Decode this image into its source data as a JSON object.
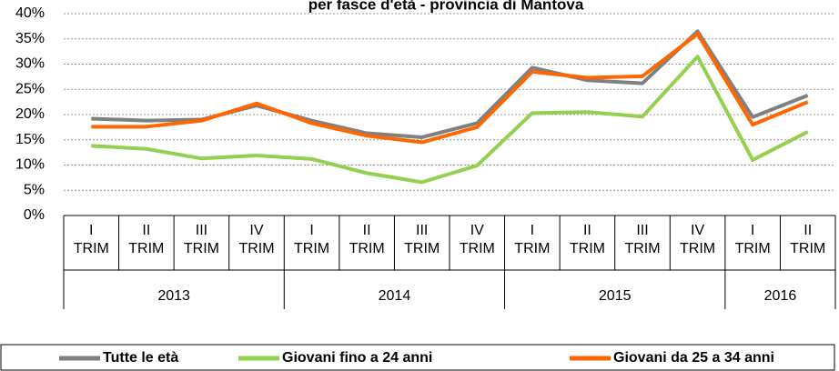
{
  "chart_data": {
    "type": "line",
    "title": "per fasce d'età - provincia di Mantova",
    "categories": [
      "I TRIM",
      "II TRIM",
      "III TRIM",
      "IV TRIM",
      "I TRIM",
      "II TRIM",
      "III TRIM",
      "IV TRIM",
      "I TRIM",
      "II TRIM",
      "III TRIM",
      "IV TRIM",
      "I TRIM",
      "II TRIM"
    ],
    "groups": [
      {
        "label": "2013",
        "count": 4
      },
      {
        "label": "2014",
        "count": 4
      },
      {
        "label": "2015",
        "count": 4
      },
      {
        "label": "2016",
        "count": 2
      }
    ],
    "series": [
      {
        "name": "Tutte le età",
        "color": "#808080",
        "values": [
          19.2,
          18.8,
          19,
          21.8,
          18.8,
          16.3,
          15.5,
          18.3,
          29.3,
          26.8,
          26.2,
          36.5,
          19.5,
          23.8
        ]
      },
      {
        "name": "Giovani fino a 24 anni",
        "color": "#92d050",
        "values": [
          13.8,
          13.2,
          11.3,
          11.9,
          11.2,
          8.4,
          6.6,
          9.9,
          20.3,
          20.5,
          19.6,
          31.5,
          11,
          16.6
        ]
      },
      {
        "name": "Giovani da 25 a 34 anni",
        "color": "#ff6600",
        "values": [
          17.6,
          17.6,
          18.8,
          22.2,
          18.3,
          15.8,
          14.5,
          17.5,
          28.5,
          27.3,
          27.6,
          36,
          18,
          22.5
        ]
      }
    ],
    "ylim": [
      0,
      40
    ],
    "yticks": [
      {
        "value": 0,
        "label": "0%"
      },
      {
        "value": 5,
        "label": "5%"
      },
      {
        "value": 10,
        "label": "10%"
      },
      {
        "value": 15,
        "label": "15%"
      },
      {
        "value": 20,
        "label": "20%"
      },
      {
        "value": 25,
        "label": "25%"
      },
      {
        "value": 30,
        "label": "30%"
      },
      {
        "value": 35,
        "label": "35%"
      },
      {
        "value": 40,
        "label": "40%"
      }
    ],
    "grid": true
  }
}
